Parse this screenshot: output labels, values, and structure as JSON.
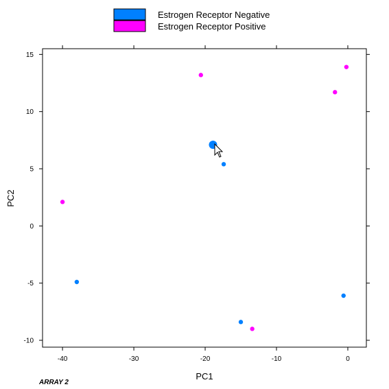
{
  "chart_data": {
    "type": "scatter",
    "xlabel": "PC1",
    "ylabel": "PC2",
    "xlim": [
      -42.8,
      2.6
    ],
    "ylim": [
      -10.6,
      15.5
    ],
    "xticks": [
      -40,
      -30,
      -20,
      -10,
      0
    ],
    "yticks": [
      -10,
      -5,
      0,
      5,
      10,
      15
    ],
    "legend_position": "top-center",
    "grid": false,
    "series": [
      {
        "name": "Estrogen Receptor Negative",
        "color": "#0080ff",
        "points": [
          {
            "x": -18.9,
            "y": 7.1,
            "highlighted": true
          },
          {
            "x": -17.4,
            "y": 5.4
          },
          {
            "x": -38.0,
            "y": -4.9
          },
          {
            "x": -15.0,
            "y": -8.4
          },
          {
            "x": -0.6,
            "y": -6.1
          }
        ]
      },
      {
        "name": "Estrogen Receptor Positive",
        "color": "#ff00ff",
        "points": [
          {
            "x": -20.6,
            "y": 13.2
          },
          {
            "x": -1.8,
            "y": 11.7
          },
          {
            "x": -0.2,
            "y": 13.9
          },
          {
            "x": -40.0,
            "y": 2.1
          },
          {
            "x": -13.4,
            "y": -9.0
          }
        ]
      }
    ]
  },
  "footer": {
    "label": "ARRAY 2"
  }
}
